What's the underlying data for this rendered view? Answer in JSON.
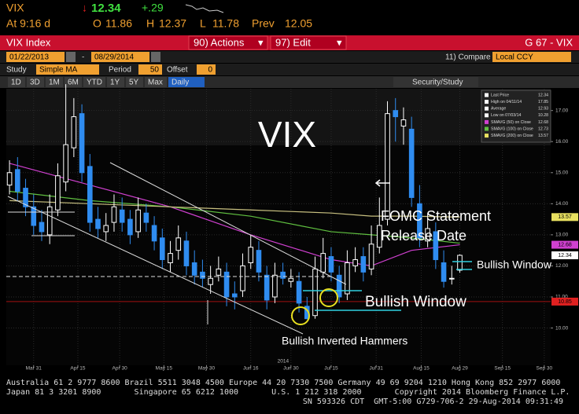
{
  "header": {
    "ticker": "VIX",
    "last": 12.34,
    "change": "+.29",
    "time": "At 9:16 d",
    "open_label": "O",
    "open": 11.86,
    "high_label": "H",
    "high": 12.37,
    "low_label": "L",
    "low": 11.78,
    "prev_label": "Prev",
    "prev": 12.05
  },
  "toolbar": {
    "security": "VIX Index",
    "actions": "90) Actions",
    "edit": "97) Edit",
    "right": "G 67 - VIX"
  },
  "range": {
    "start": "01/22/2013",
    "end": "08/29/2014",
    "compare": "11) Compare",
    "currency": "Local CCY"
  },
  "study": {
    "label": "Study",
    "value": "Simple MA",
    "period_label": "Period",
    "period": 50,
    "offset_label": "Offset",
    "offset": 0
  },
  "periods": [
    "1D",
    "3D",
    "1M",
    "6M",
    "YTD",
    "1Y",
    "5Y",
    "Max",
    "Daily"
  ],
  "security_study": "Security/Study",
  "chart_data": {
    "type": "candlestick",
    "title": "VIX",
    "annotations": [
      "FOMC Statement",
      "Release Date",
      "Bullish Window",
      "Bullish Window",
      "Bullish Inverted Hammers"
    ],
    "open": [
      14.6,
      15.1,
      14.5,
      13.9,
      13.4,
      13.0,
      13.8,
      14.7,
      15.8,
      16.9,
      15.2,
      13.5,
      13.1,
      13.4,
      13.8,
      13.5,
      13.1,
      13.7,
      13.3,
      12.9,
      12.1,
      12.5,
      12.8,
      12.1,
      11.8,
      11.4,
      11.7,
      11.8,
      11.1,
      11.2,
      12.1,
      12.5,
      11.7,
      11.0,
      11.8,
      11.5,
      11.5,
      10.7,
      10.4,
      11.8,
      12.3,
      11.7,
      11.1,
      12.0,
      12.3,
      11.9,
      12.6,
      13.5,
      17.0,
      16.5,
      16.4,
      14.0,
      12.8,
      13.1,
      12.1,
      11.6,
      11.86
    ],
    "high": [
      15.4,
      15.5,
      14.8,
      14.3,
      13.8,
      14.3,
      15.3,
      17.85,
      17.4,
      17.2,
      15.6,
      13.9,
      13.7,
      14.3,
      14.2,
      13.8,
      14.2,
      14.0,
      13.6,
      13.2,
      12.8,
      13.3,
      13.1,
      12.5,
      12.2,
      12.0,
      12.3,
      12.1,
      11.5,
      12.4,
      13.0,
      12.8,
      12.0,
      12.1,
      12.1,
      11.9,
      11.8,
      11.0,
      12.3,
      12.9,
      12.6,
      12.0,
      12.5,
      12.6,
      12.6,
      13.3,
      14.2,
      17.3,
      17.4,
      17.1,
      16.8,
      14.6,
      13.7,
      13.4,
      12.5,
      12.0,
      12.37
    ],
    "low": [
      14.3,
      14.1,
      13.6,
      13.0,
      12.8,
      12.7,
      13.6,
      14.4,
      15.5,
      14.7,
      13.1,
      12.9,
      12.8,
      13.1,
      13.1,
      12.7,
      12.9,
      13.1,
      12.5,
      11.9,
      11.8,
      12.2,
      11.7,
      11.4,
      11.3,
      11.1,
      11.5,
      10.7,
      10.6,
      11.0,
      11.9,
      11.5,
      10.6,
      10.8,
      11.4,
      11.3,
      10.5,
      10.28,
      10.3,
      11.6,
      11.5,
      10.8,
      10.9,
      11.8,
      11.5,
      11.7,
      12.4,
      13.3,
      16.0,
      15.9,
      13.9,
      12.6,
      12.6,
      11.9,
      11.3,
      11.4,
      11.78
    ],
    "close": [
      15.0,
      14.4,
      13.9,
      13.3,
      13.1,
      13.9,
      14.9,
      15.9,
      16.8,
      15.0,
      13.4,
      13.2,
      13.3,
      13.9,
      13.4,
      13.0,
      13.8,
      13.4,
      12.8,
      12.2,
      12.4,
      12.9,
      12.0,
      11.7,
      11.6,
      11.6,
      11.9,
      11.0,
      11.0,
      12.0,
      12.6,
      11.8,
      10.9,
      11.7,
      11.6,
      11.6,
      10.8,
      10.3,
      11.9,
      12.4,
      11.8,
      11.0,
      12.1,
      12.2,
      11.8,
      12.7,
      13.3,
      16.9,
      16.8,
      16.7,
      14.2,
      12.9,
      13.2,
      12.2,
      11.5,
      11.6,
      12.34
    ],
    "up_color": "#ffffff",
    "down_color": "#2f8cf0",
    "series": [
      {
        "name": "SMAVG (50) on Close",
        "color": "#d040d0",
        "x": [
          0,
          10,
          20,
          30,
          40,
          45,
          50,
          56
        ],
        "values": [
          15.3,
          14.6,
          13.9,
          13.0,
          12.2,
          12.0,
          12.5,
          12.68
        ]
      },
      {
        "name": "SMAVG (100) on Close",
        "color": "#60c040",
        "x": [
          0,
          10,
          20,
          30,
          40,
          45,
          50,
          56
        ],
        "values": [
          14.4,
          14.1,
          13.9,
          13.6,
          13.1,
          13.0,
          12.9,
          12.73
        ]
      },
      {
        "name": "SMAVG (200) on Close",
        "color": "#c8c080",
        "x": [
          0,
          10,
          20,
          30,
          40,
          45,
          50,
          56
        ],
        "values": [
          14.1,
          14.0,
          13.9,
          13.8,
          13.7,
          13.6,
          13.6,
          13.57
        ]
      }
    ],
    "legend": [
      {
        "name": "Last Price",
        "value": 12.34,
        "color": "#ffffff"
      },
      {
        "name": "High on 04/11/14",
        "value": 17.85,
        "color": "#ffffff"
      },
      {
        "name": "Average",
        "value": 12.93,
        "color": "#ffffff"
      },
      {
        "name": "Low on 07/03/14",
        "value": 10.28,
        "color": "#ffffff"
      },
      {
        "name": "SMAVG (50) on Close",
        "value": 12.68,
        "color": "#d040d0"
      },
      {
        "name": "SMAVG (100) on Close",
        "value": 12.73,
        "color": "#60c040"
      },
      {
        "name": "SMAVG (200) on Close",
        "value": 13.57,
        "color": "#e8e060"
      }
    ],
    "price_flags": [
      {
        "value": 13.57,
        "color": "#e8e060"
      },
      {
        "value": 12.68,
        "color": "#d040d0"
      },
      {
        "value": 12.34,
        "color": "#ffffff"
      },
      {
        "value": 10.85,
        "color": "#e02020"
      }
    ],
    "ref_line": 10.85,
    "ylim": [
      8.8,
      17.7
    ],
    "yticks": [
      {
        "value": 10,
        "label": "10.00"
      },
      {
        "value": 11,
        "label": "11.00"
      },
      {
        "value": 12,
        "label": "12.00"
      },
      {
        "value": 13,
        "label": "13.00"
      },
      {
        "value": 14,
        "label": "14.00"
      },
      {
        "value": 15,
        "label": "15.00"
      },
      {
        "value": 16,
        "label": "16.00"
      },
      {
        "value": 17,
        "label": "17.00"
      }
    ],
    "xlim": [
      -0.4,
      67.3
    ],
    "xticks": [
      {
        "value": 3,
        "label": "Mar 31"
      },
      {
        "value": 8.5,
        "label": "Apr 15"
      },
      {
        "value": 13.7,
        "label": "Apr 30"
      },
      {
        "value": 19.2,
        "label": "May 15"
      },
      {
        "value": 24.5,
        "label": "May 30"
      },
      {
        "value": 30,
        "label": "Jun 16"
      },
      {
        "value": 35,
        "label": "Jun 30"
      },
      {
        "value": 40,
        "label": "Jul 15"
      },
      {
        "value": 45.6,
        "label": "Jul 31"
      },
      {
        "value": 51.2,
        "label": "Aug 15"
      },
      {
        "value": 56,
        "label": "Aug 29"
      },
      {
        "value": 61.3,
        "label": "Sep 15"
      },
      {
        "value": 66.5,
        "label": "Sep 30"
      }
    ],
    "year_label": "2014",
    "grid": true
  },
  "footer": [
    "Australia 61 2 9777 8600 Brazil 5511 3048 4500 Europe 44 20 7330 7500 Germany 49 69 9204 1210 Hong Kong 852 2977 6000",
    "Japan 81 3 3201 8900       Singapore 65 6212 1000       U.S. 1 212 318 2000       Copyright 2014 Bloomberg Finance L.P.",
    "SN 593326 CDT  GMT-5:00 G729-706-2 29-Aug-2014 09:31:49"
  ]
}
